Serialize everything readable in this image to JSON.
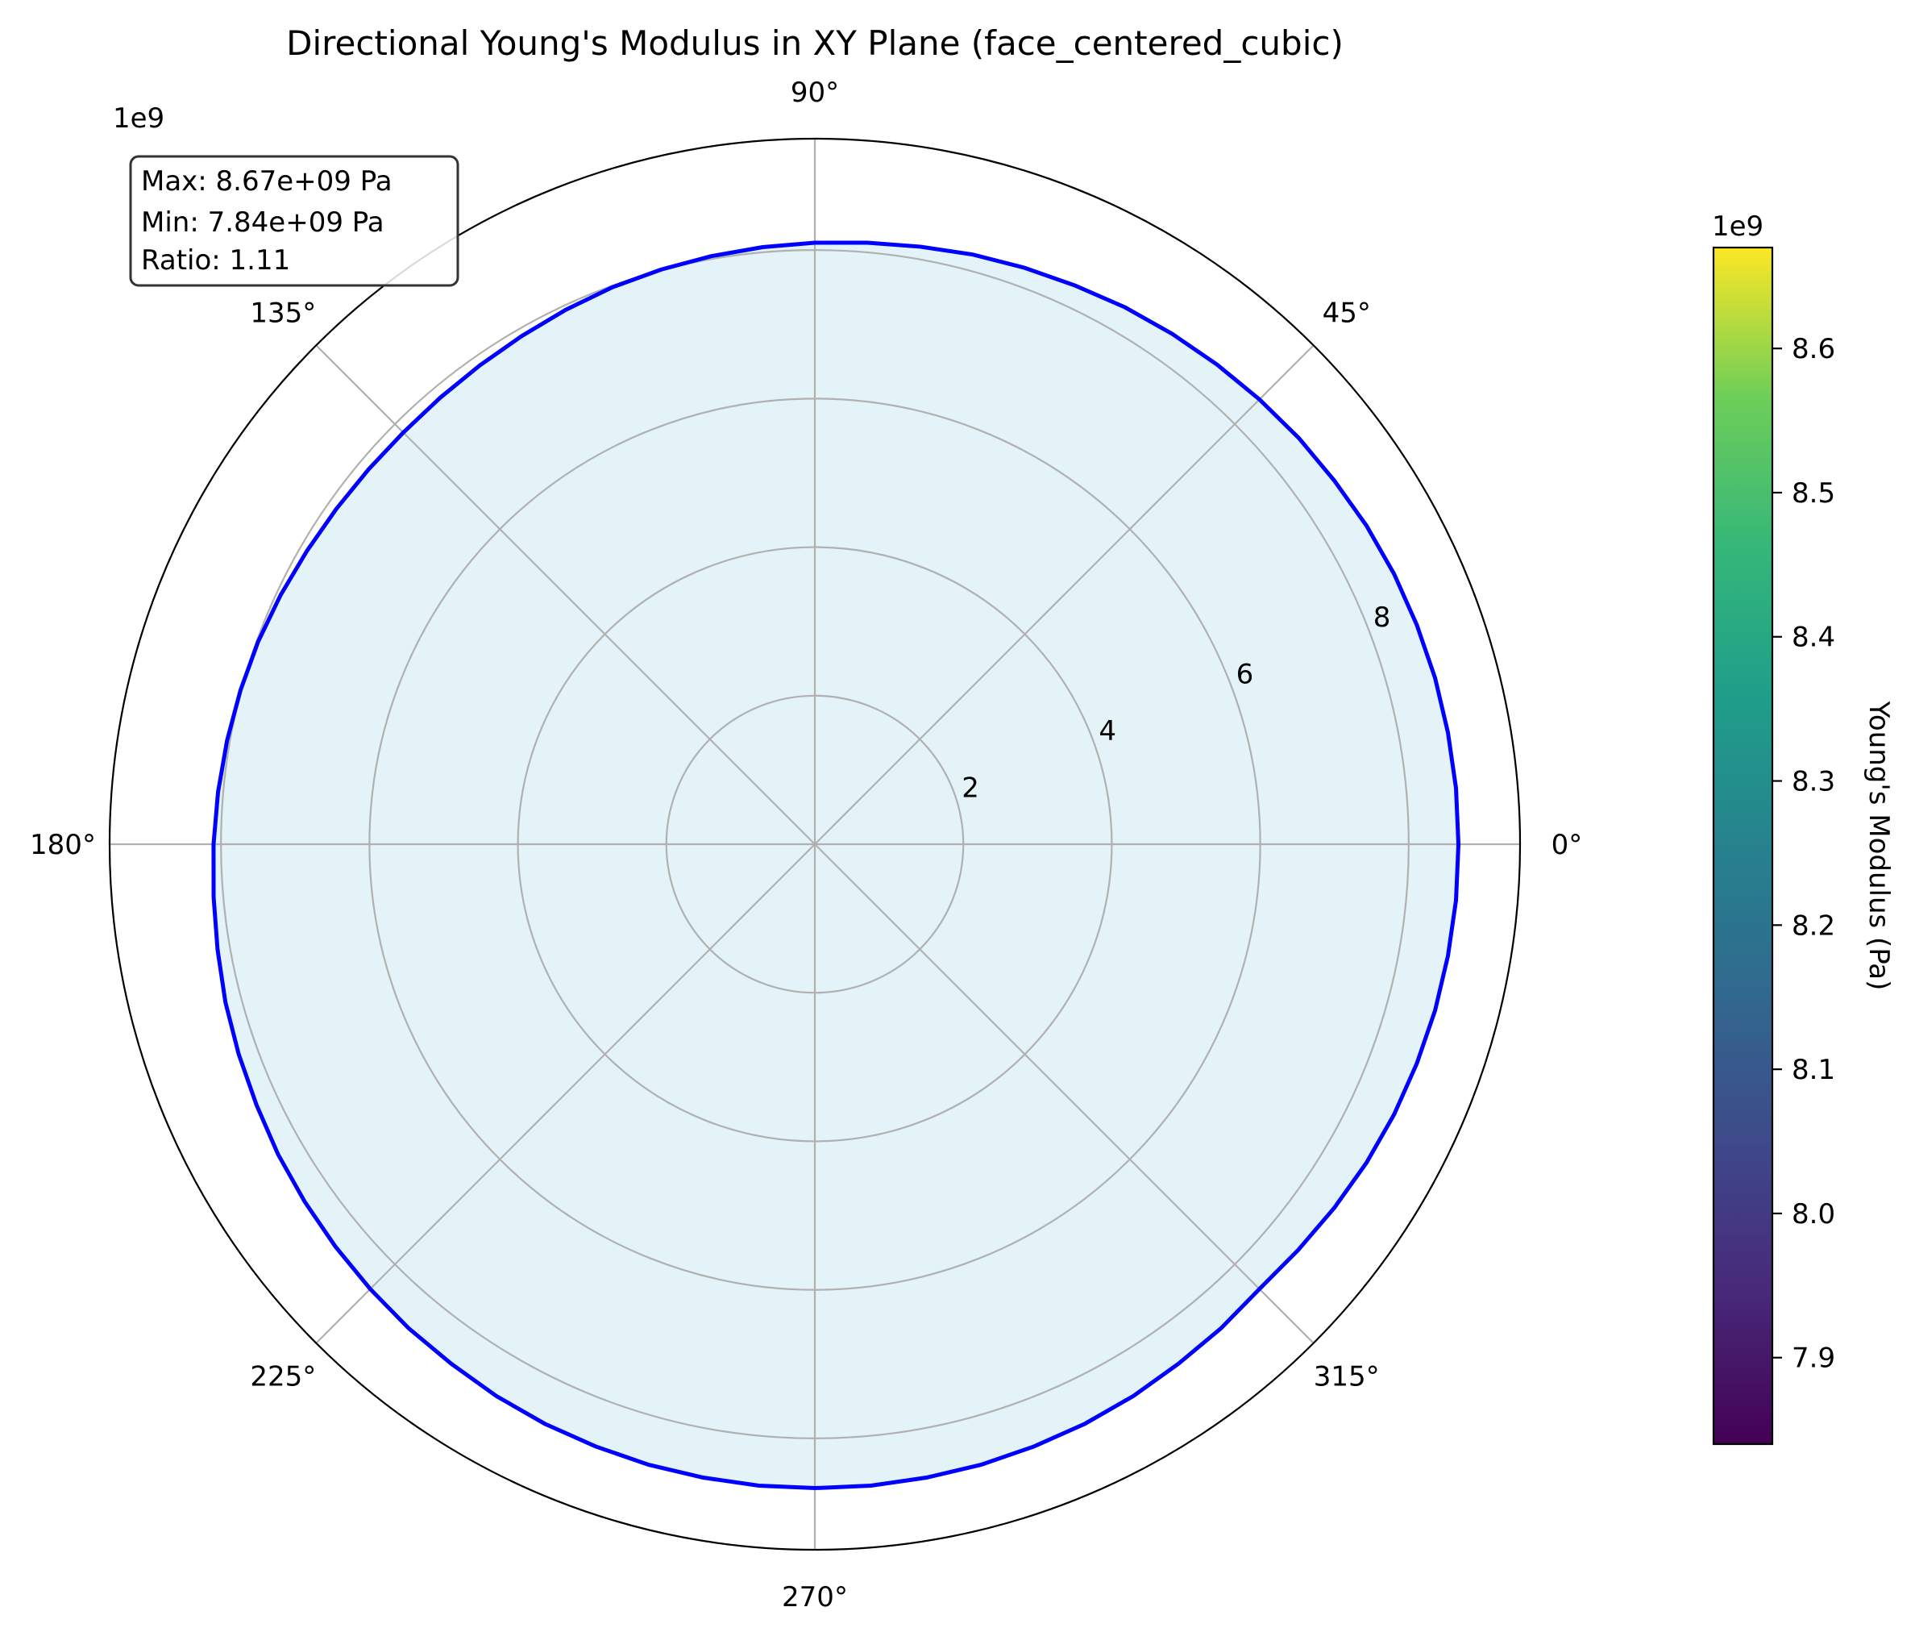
{
  "chart_data": {
    "type": "polar-line",
    "title": "Directional Young's Modulus in XY Plane (face_centered_cubic)",
    "radial_multiplier_label": "1e9",
    "radial_ticks": [
      2,
      4,
      6,
      8
    ],
    "radial_max": 9.5,
    "angle_ticks": [
      "0°",
      "45°",
      "90°",
      "135°",
      "180°",
      "225°",
      "270°",
      "315°"
    ],
    "grid": true,
    "fill_color": "#e4f3f7",
    "line_color": "#0000ff",
    "stats_box": {
      "max_label": "Max: 8.67e+09 Pa",
      "min_label": "Min: 7.84e+09 Pa",
      "ratio_label": "Ratio: 1.11"
    },
    "series": {
      "angle_deg": [
        0,
        5,
        10,
        15,
        20,
        25,
        30,
        35,
        40,
        45,
        50,
        55,
        60,
        65,
        70,
        75,
        80,
        85,
        90,
        95,
        100,
        105,
        110,
        115,
        120,
        125,
        130,
        135,
        140,
        145,
        150,
        155,
        160,
        165,
        170,
        175,
        180,
        185,
        190,
        195,
        200,
        205,
        210,
        215,
        220,
        225,
        230,
        235,
        240,
        245,
        250,
        255,
        260,
        265,
        270,
        275,
        280,
        285,
        290,
        295,
        300,
        305,
        310,
        315,
        320,
        325,
        330,
        335,
        340,
        345,
        350,
        355,
        360
      ],
      "value_1e9_pa": [
        8.67,
        8.67,
        8.66,
        8.65,
        8.63,
        8.61,
        8.58,
        8.54,
        8.51,
        8.47,
        8.43,
        8.39,
        8.35,
        8.3,
        8.26,
        8.22,
        8.17,
        8.13,
        8.1,
        8.07,
        8.04,
        8.01,
        7.98,
        7.94,
        7.9,
        7.87,
        7.85,
        7.84,
        7.85,
        7.87,
        7.9,
        7.94,
        7.98,
        8.01,
        8.04,
        8.07,
        8.1,
        8.13,
        8.17,
        8.22,
        8.26,
        8.3,
        8.35,
        8.39,
        8.43,
        8.47,
        8.51,
        8.54,
        8.58,
        8.61,
        8.63,
        8.65,
        8.66,
        8.67,
        8.67,
        8.67,
        8.66,
        8.65,
        8.63,
        8.61,
        8.58,
        8.54,
        8.51,
        8.47,
        8.5,
        8.54,
        8.58,
        8.61,
        8.63,
        8.65,
        8.66,
        8.67,
        8.67
      ]
    },
    "colorbar": {
      "label": "Young's Modulus (Pa)",
      "multiplier_label": "1e9",
      "min": 7.84,
      "max": 8.67,
      "ticks": [
        "7.9",
        "8.0",
        "8.1",
        "8.2",
        "8.3",
        "8.4",
        "8.5",
        "8.6"
      ],
      "tick_values": [
        7.9,
        8.0,
        8.1,
        8.2,
        8.3,
        8.4,
        8.5,
        8.6
      ],
      "colormap": "viridis"
    }
  }
}
